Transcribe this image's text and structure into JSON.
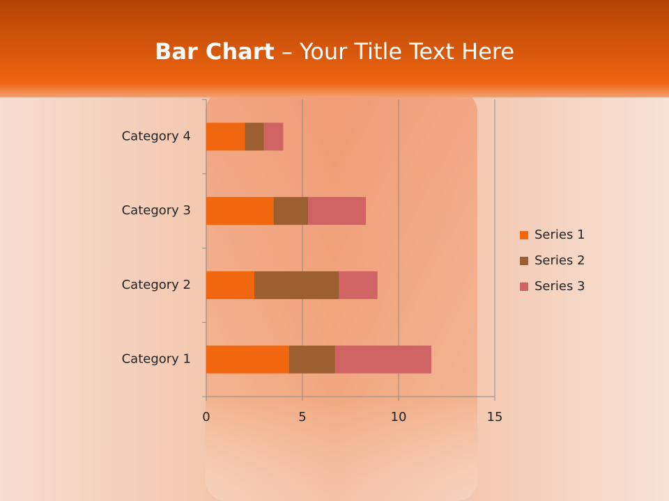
{
  "slide": {
    "title_bold": "Bar Chart",
    "title_rest": "– Your Title Text Here"
  },
  "chart_data": {
    "type": "stacked-bar-horizontal",
    "categories": [
      "Category 1",
      "Category 2",
      "Category 3",
      "Category 4"
    ],
    "series": [
      {
        "name": "Series 1",
        "color": "#f0670f",
        "values": [
          4.3,
          2.5,
          3.5,
          2
        ]
      },
      {
        "name": "Series 2",
        "color": "#9c6030",
        "values": [
          2.4,
          4.4,
          1.8,
          1
        ]
      },
      {
        "name": "Series 3",
        "color": "#d06464",
        "values": [
          5,
          2,
          3,
          1
        ]
      }
    ],
    "xlim": [
      0,
      15
    ],
    "xticks": [
      0,
      5,
      10,
      15
    ],
    "grid": true,
    "legend": "right"
  }
}
